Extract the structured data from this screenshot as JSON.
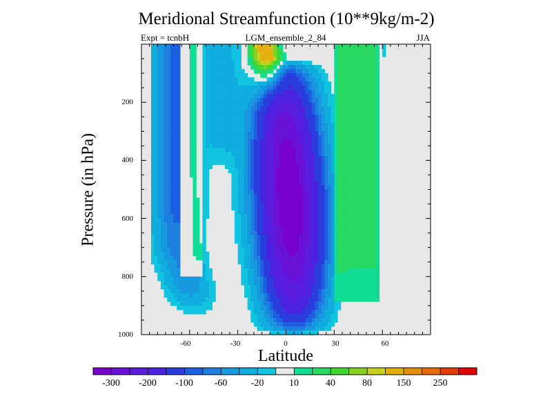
{
  "chart_data": {
    "type": "filled-contour",
    "title": "Meridional Streamfunction (10**9kg/m-2)",
    "subtitle_left": "Expt = tcnbH",
    "subtitle_center": "LGM_ensemble_2_84",
    "subtitle_right": "JJA",
    "xlabel": "Latitude",
    "ylabel": "Pressure (in hPa)",
    "xlim": [
      -90,
      90
    ],
    "ylim": [
      1000,
      0
    ],
    "y_reversed": true,
    "x_ticks": [
      -60,
      -30,
      0,
      30,
      60
    ],
    "y_ticks": [
      200,
      400,
      600,
      800,
      1000
    ],
    "colorbar": {
      "levels": [
        -350,
        -300,
        -250,
        -200,
        -150,
        -100,
        -80,
        -60,
        -40,
        -20,
        -10,
        10,
        20,
        40,
        60,
        80,
        100,
        150,
        200,
        250,
        300
      ],
      "labels": [
        "-300",
        "-200",
        "-100",
        "-60",
        "-20",
        "10",
        "40",
        "80",
        "150",
        "250"
      ],
      "colors": [
        "#7700cc",
        "#6a11d8",
        "#5a1cdc",
        "#4a22e0",
        "#2a3ddc",
        "#1c5fe0",
        "#1e7fe0",
        "#1798df",
        "#10addf",
        "#12c4e0",
        "#e8e8e8",
        "#10dc93",
        "#28d860",
        "#40d830",
        "#88d020",
        "#c8cf1e",
        "#e4b00f",
        "#e68d0b",
        "#e66a08",
        "#e23e06",
        "#e00000"
      ]
    },
    "regions": [
      {
        "name": "southern-cell",
        "type": "negative",
        "lat_range": [
          -83,
          -18
        ],
        "core_lat": -68,
        "min_value": -80,
        "p_range": [
          20,
          960
        ]
      },
      {
        "name": "southern-green-band",
        "type": "positive",
        "lat_range": [
          -64,
          -55
        ],
        "max_value": 20,
        "p_range": [
          20,
          800
        ]
      },
      {
        "name": "tropical-cell",
        "type": "negative",
        "lat_range": [
          -17,
          20
        ],
        "core_lat": 2,
        "min_value": -330,
        "p_range": [
          20,
          995
        ]
      },
      {
        "name": "upper-positive-lobe",
        "type": "positive",
        "lat_range": [
          -23,
          3
        ],
        "max_value": 150,
        "p_range": [
          20,
          230
        ]
      },
      {
        "name": "northern-green-band",
        "type": "positive",
        "lat_range": [
          32,
          57
        ],
        "max_value": 40,
        "p_range": [
          20,
          880
        ]
      }
    ]
  }
}
